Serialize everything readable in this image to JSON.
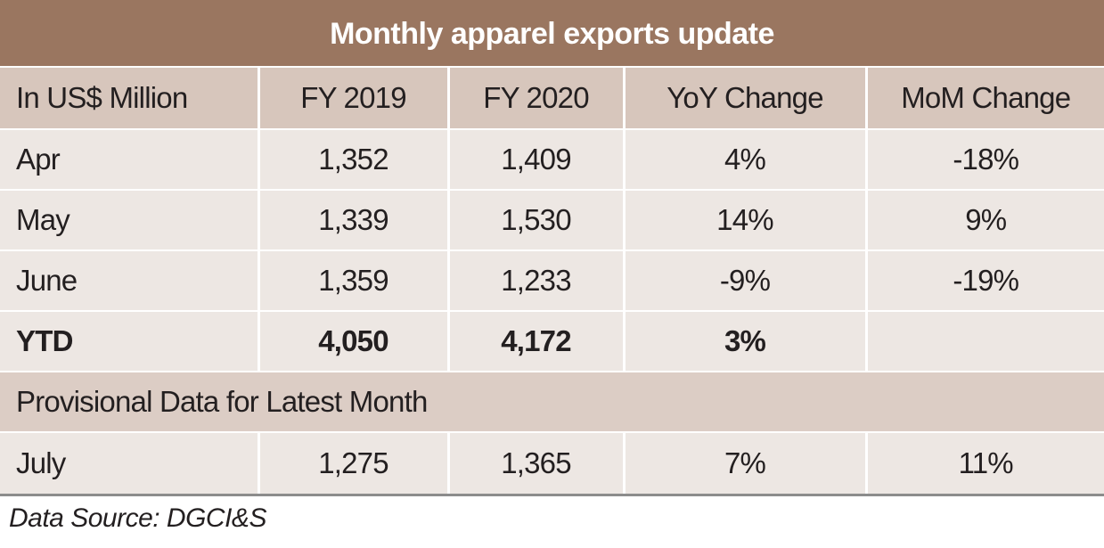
{
  "header": {
    "title": "Monthly apparel exports update"
  },
  "table": {
    "columns": [
      "In US$ Million",
      "FY 2019",
      "FY 2020",
      "YoY Change",
      "MoM Change"
    ],
    "rows": [
      [
        "Apr",
        "1,352",
        "1,409",
        "4%",
        "-18%"
      ],
      [
        "May",
        "1,339",
        "1,530",
        "14%",
        "9%"
      ],
      [
        "June",
        "1,359",
        "1,233",
        "-9%",
        "-19%"
      ],
      [
        "YTD",
        "4,050",
        "4,172",
        "3%"
      ]
    ],
    "section": "Provisional Data for Latest Month",
    "section_rows": [
      [
        "July",
        "1,275",
        "1,365",
        "7%",
        "11%"
      ]
    ]
  },
  "footer": {
    "source": "Data Source: DGCI&S"
  }
}
